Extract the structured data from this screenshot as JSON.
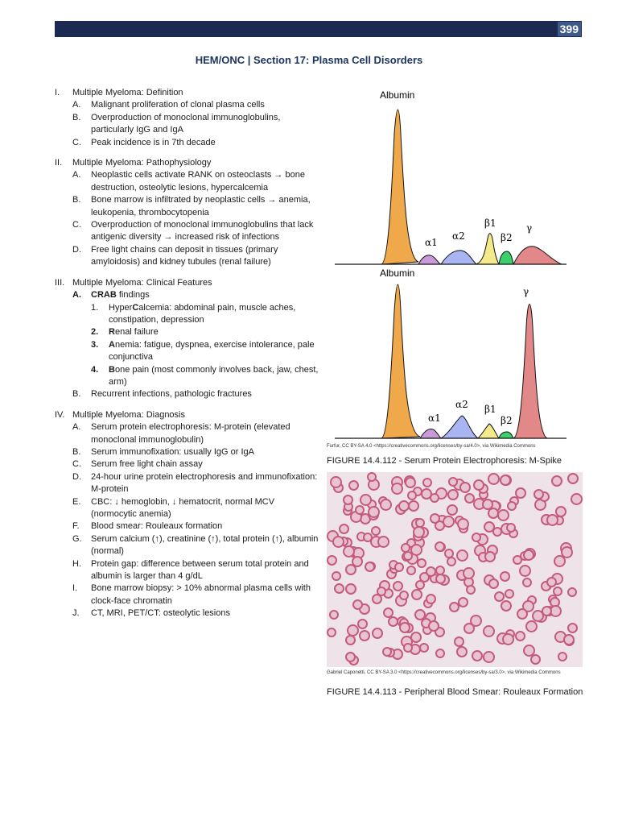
{
  "header": {
    "page_number": "399",
    "title": "HEM/ONC | Section 17: Plasma Cell Disorders"
  },
  "sections": [
    {
      "num": "I.",
      "title": "Multiple Myeloma: Definition",
      "items": [
        {
          "num": "A.",
          "text": "Malignant proliferation of clonal plasma cells"
        },
        {
          "num": "B.",
          "text": "Overproduction of monoclonal immunoglobulins, particularly IgG and IgA"
        },
        {
          "num": "C.",
          "text": "Peak incidence is in 7th decade"
        }
      ]
    },
    {
      "num": "II.",
      "title": "Multiple Myeloma: Pathophysiology",
      "items": [
        {
          "num": "A.",
          "text": "Neoplastic cells activate RANK on osteoclasts → bone destruction, osteolytic lesions, hypercalcemia"
        },
        {
          "num": "B.",
          "text": "Bone marrow is infiltrated by neoplastic cells → anemia, leukopenia, thrombocytopenia"
        },
        {
          "num": "C.",
          "text": "Overproduction of monoclonal immunoglobulins that lack antigenic diversity → increased risk of infections"
        },
        {
          "num": "D.",
          "text": "Free light chains can deposit in tissues (primary amyloidosis) and kidney tubules (renal failure)"
        }
      ]
    },
    {
      "num": "III.",
      "title": "Multiple Myeloma: Clinical Features",
      "items": [
        {
          "num": "A.",
          "bold": "CRAB",
          "text": " findings"
        },
        {
          "num": "B.",
          "text": "Recurrent infections, pathologic fractures"
        }
      ],
      "crab": [
        {
          "num": "1.",
          "pre": "Hyper",
          "bold": "C",
          "text": "alcemia: abdominal pain, muscle aches, constipation, depression"
        },
        {
          "num": "2.",
          "pre": "",
          "bold": "R",
          "text": "enal failure"
        },
        {
          "num": "3.",
          "pre": "",
          "bold": "A",
          "text": "nemia: fatigue, dyspnea, exercise intolerance, pale conjunctiva"
        },
        {
          "num": "4.",
          "pre": "",
          "bold": "B",
          "text": "one pain (most commonly involves back, jaw, chest, arm)"
        }
      ]
    },
    {
      "num": "IV.",
      "title": "Multiple Myeloma: Diagnosis",
      "items": [
        {
          "num": "A.",
          "text": "Serum protein electrophoresis: M-protein (elevated monoclonal immunoglobulin)"
        },
        {
          "num": "B.",
          "text": "Serum immunofixation: usually IgG or IgA"
        },
        {
          "num": "C.",
          "text": "Serum free light chain assay"
        },
        {
          "num": "D.",
          "text": "24-hour urine protein electrophoresis and immunofixation: M-protein"
        },
        {
          "num": "E.",
          "text": "CBC: ↓ hemoglobin, ↓ hematocrit, normal MCV (normocytic anemia)"
        },
        {
          "num": "F.",
          "text": "Blood smear: Rouleaux formation"
        },
        {
          "num": "G.",
          "text": "Serum calcium (↑), creatinine (↑), total protein (↑), albumin (normal)"
        },
        {
          "num": "H.",
          "text": "Protein gap: difference between serum total protein and albumin is larger than 4 g/dL"
        },
        {
          "num": "I.",
          "text": "Bone marrow biopsy: > 10% abnormal plasma cells with clock-face chromatin"
        },
        {
          "num": "J.",
          "text": "CT, MRI, PET/CT: osteolytic lesions"
        }
      ]
    }
  ],
  "figure1": {
    "labels": {
      "albumin": "Albumin",
      "a1": "α1",
      "a2": "α2",
      "b1": "β1",
      "b2": "β2",
      "g": "γ"
    },
    "credit": "Furfur, CC BY-SA 4.0 <https://creativecommons.org/licenses/by-sa/4.0>, via Wikimedia Commons",
    "caption": "FIGURE 14.4.112 - Serum Protein Electrophoresis: M-Spike"
  },
  "figure2": {
    "credit": "Gabriel Caponetti, CC BY-SA 3.0 <https://creativecommons.org/licenses/by-sa/3.0>, via Wikimedia Commons",
    "caption": "FIGURE 14.4.113 - Peripheral Blood Smear: Rouleaux Formation"
  },
  "colors": {
    "albumin": "#f0a94a",
    "a1": "#c89ad8",
    "a2": "#a9b4f2",
    "b1": "#f4ea8a",
    "b2": "#3ad06b",
    "g": "#e38888",
    "bar": "#1c2a52"
  }
}
